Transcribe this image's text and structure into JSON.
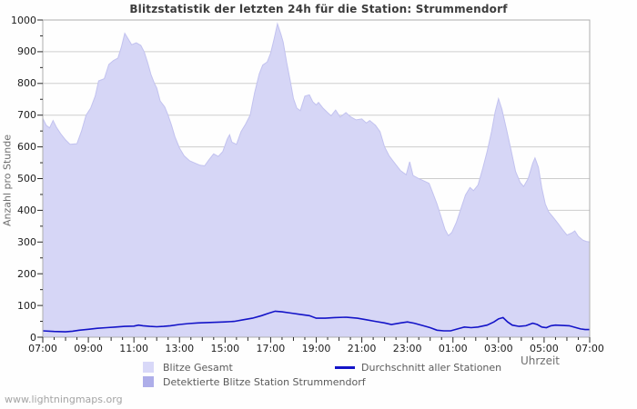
{
  "title": "Blitzstatistik der letzten 24h für die Station: Strummendorf",
  "watermark": "www.lightningmaps.org",
  "axes": {
    "y_label": "Anzahl pro Stunde",
    "x_label": "Uhrzeit",
    "y_tick_values": [
      0,
      100,
      200,
      300,
      400,
      500,
      600,
      700,
      800,
      900,
      1000
    ],
    "x_tick_labels": [
      "07:00",
      "09:00",
      "11:00",
      "13:00",
      "15:00",
      "17:00",
      "19:00",
      "21:00",
      "23:00",
      "01:00",
      "03:00",
      "05:00",
      "07:00"
    ]
  },
  "legend": [
    {
      "label": "Blitze Gesamt",
      "type": "area",
      "color": "#d8d8f8"
    },
    {
      "label": "Detektierte Blitze Station Strummendorf",
      "type": "area",
      "color": "#aeaee9"
    },
    {
      "label": "Durchschnitt aller Stationen",
      "type": "line",
      "color": "#1414c8"
    }
  ],
  "colors": {
    "plot_border": "#adadad",
    "gridline": "#cdcdcd",
    "tick": "#2a2a2a",
    "area_total_fill": "#d6d6f6",
    "area_total_edge": "#c2c2ef",
    "area_station_fill": "#aeaee9",
    "avg_line": "#1414c8",
    "background": "#fefefe"
  },
  "chart_data": {
    "type": "area",
    "title": "Blitzstatistik der letzten 24h für die Station: Strummendorf",
    "xlabel": "Uhrzeit",
    "ylabel": "Anzahl pro Stunde",
    "x_unit": "hours_after_07:00",
    "xlim_hours": [
      0,
      24
    ],
    "ylim": [
      0,
      1000
    ],
    "grid": "horizontal-major",
    "legend_position": "bottom",
    "series": [
      {
        "name": "Blitze Gesamt",
        "style": "area",
        "color": "#d6d6f6",
        "points": [
          [
            0,
            690
          ],
          [
            0.15,
            668
          ],
          [
            0.3,
            660
          ],
          [
            0.45,
            683
          ],
          [
            0.6,
            662
          ],
          [
            0.8,
            640
          ],
          [
            1.0,
            622
          ],
          [
            1.2,
            608
          ],
          [
            1.5,
            610
          ],
          [
            1.7,
            650
          ],
          [
            1.9,
            700
          ],
          [
            2.1,
            722
          ],
          [
            2.3,
            760
          ],
          [
            2.45,
            808
          ],
          [
            2.7,
            815
          ],
          [
            2.9,
            860
          ],
          [
            3.1,
            872
          ],
          [
            3.3,
            880
          ],
          [
            3.45,
            915
          ],
          [
            3.6,
            958
          ],
          [
            3.75,
            940
          ],
          [
            3.9,
            922
          ],
          [
            4.1,
            928
          ],
          [
            4.3,
            920
          ],
          [
            4.45,
            900
          ],
          [
            4.6,
            866
          ],
          [
            4.75,
            828
          ],
          [
            4.9,
            800
          ],
          [
            5.0,
            786
          ],
          [
            5.15,
            745
          ],
          [
            5.35,
            726
          ],
          [
            5.5,
            700
          ],
          [
            5.65,
            668
          ],
          [
            5.8,
            632
          ],
          [
            6.0,
            596
          ],
          [
            6.2,
            572
          ],
          [
            6.45,
            556
          ],
          [
            6.7,
            548
          ],
          [
            6.9,
            542
          ],
          [
            7.1,
            540
          ],
          [
            7.3,
            560
          ],
          [
            7.5,
            578
          ],
          [
            7.7,
            570
          ],
          [
            7.9,
            585
          ],
          [
            8.1,
            625
          ],
          [
            8.2,
            638
          ],
          [
            8.3,
            615
          ],
          [
            8.5,
            608
          ],
          [
            8.7,
            648
          ],
          [
            8.9,
            672
          ],
          [
            9.1,
            700
          ],
          [
            9.3,
            772
          ],
          [
            9.5,
            830
          ],
          [
            9.65,
            858
          ],
          [
            9.85,
            868
          ],
          [
            10.0,
            895
          ],
          [
            10.15,
            940
          ],
          [
            10.3,
            988
          ],
          [
            10.45,
            955
          ],
          [
            10.55,
            930
          ],
          [
            10.7,
            868
          ],
          [
            10.85,
            812
          ],
          [
            11.0,
            752
          ],
          [
            11.15,
            722
          ],
          [
            11.3,
            714
          ],
          [
            11.5,
            760
          ],
          [
            11.7,
            764
          ],
          [
            11.85,
            742
          ],
          [
            12.0,
            732
          ],
          [
            12.1,
            740
          ],
          [
            12.3,
            722
          ],
          [
            12.5,
            708
          ],
          [
            12.65,
            698
          ],
          [
            12.85,
            716
          ],
          [
            13.05,
            694
          ],
          [
            13.3,
            708
          ],
          [
            13.5,
            695
          ],
          [
            13.75,
            685
          ],
          [
            14.0,
            688
          ],
          [
            14.2,
            675
          ],
          [
            14.35,
            683
          ],
          [
            14.6,
            668
          ],
          [
            14.8,
            648
          ],
          [
            15.0,
            600
          ],
          [
            15.2,
            572
          ],
          [
            15.45,
            548
          ],
          [
            15.7,
            525
          ],
          [
            15.95,
            512
          ],
          [
            16.1,
            553
          ],
          [
            16.25,
            510
          ],
          [
            16.5,
            500
          ],
          [
            16.75,
            492
          ],
          [
            16.95,
            485
          ],
          [
            17.1,
            458
          ],
          [
            17.3,
            420
          ],
          [
            17.5,
            375
          ],
          [
            17.65,
            340
          ],
          [
            17.8,
            320
          ],
          [
            17.95,
            330
          ],
          [
            18.15,
            362
          ],
          [
            18.35,
            405
          ],
          [
            18.55,
            448
          ],
          [
            18.75,
            472
          ],
          [
            18.9,
            462
          ],
          [
            19.1,
            480
          ],
          [
            19.3,
            530
          ],
          [
            19.5,
            585
          ],
          [
            19.7,
            650
          ],
          [
            19.85,
            710
          ],
          [
            20.0,
            752
          ],
          [
            20.15,
            718
          ],
          [
            20.35,
            655
          ],
          [
            20.55,
            590
          ],
          [
            20.75,
            522
          ],
          [
            20.95,
            488
          ],
          [
            21.1,
            475
          ],
          [
            21.3,
            500
          ],
          [
            21.5,
            548
          ],
          [
            21.6,
            565
          ],
          [
            21.75,
            535
          ],
          [
            21.9,
            470
          ],
          [
            22.05,
            420
          ],
          [
            22.2,
            395
          ],
          [
            22.4,
            378
          ],
          [
            22.6,
            360
          ],
          [
            22.8,
            340
          ],
          [
            23.0,
            322
          ],
          [
            23.2,
            328
          ],
          [
            23.35,
            335
          ],
          [
            23.5,
            318
          ],
          [
            23.7,
            306
          ],
          [
            23.85,
            302
          ],
          [
            24,
            300
          ]
        ]
      },
      {
        "name": "Detektierte Blitze Station Strummendorf",
        "style": "area",
        "color": "#aeaee9",
        "points": [
          [
            0,
            0
          ],
          [
            24,
            0
          ]
        ]
      },
      {
        "name": "Durchschnitt aller Stationen",
        "style": "line",
        "color": "#1414c8",
        "points": [
          [
            0,
            20
          ],
          [
            0.5,
            18
          ],
          [
            1,
            17
          ],
          [
            1.3,
            19
          ],
          [
            1.6,
            22
          ],
          [
            2,
            25
          ],
          [
            2.4,
            28
          ],
          [
            2.8,
            30
          ],
          [
            3.2,
            32
          ],
          [
            3.6,
            34
          ],
          [
            4,
            35
          ],
          [
            4.2,
            38
          ],
          [
            4.4,
            36
          ],
          [
            4.7,
            34
          ],
          [
            5,
            33
          ],
          [
            5.3,
            34
          ],
          [
            5.6,
            36
          ],
          [
            6,
            40
          ],
          [
            6.4,
            43
          ],
          [
            6.8,
            45
          ],
          [
            7.2,
            46
          ],
          [
            7.6,
            47
          ],
          [
            8,
            48
          ],
          [
            8.4,
            50
          ],
          [
            8.8,
            55
          ],
          [
            9.2,
            60
          ],
          [
            9.6,
            68
          ],
          [
            9.9,
            75
          ],
          [
            10.2,
            82
          ],
          [
            10.5,
            80
          ],
          [
            10.9,
            76
          ],
          [
            11.3,
            72
          ],
          [
            11.7,
            68
          ],
          [
            12,
            60
          ],
          [
            12.4,
            60
          ],
          [
            12.8,
            62
          ],
          [
            13.3,
            63
          ],
          [
            13.8,
            60
          ],
          [
            14.2,
            55
          ],
          [
            14.6,
            50
          ],
          [
            15,
            45
          ],
          [
            15.3,
            40
          ],
          [
            15.7,
            45
          ],
          [
            16,
            48
          ],
          [
            16.3,
            44
          ],
          [
            16.7,
            36
          ],
          [
            17,
            30
          ],
          [
            17.3,
            22
          ],
          [
            17.6,
            20
          ],
          [
            17.9,
            20
          ],
          [
            18.2,
            26
          ],
          [
            18.5,
            32
          ],
          [
            18.8,
            30
          ],
          [
            19.1,
            32
          ],
          [
            19.5,
            38
          ],
          [
            19.8,
            48
          ],
          [
            20.0,
            58
          ],
          [
            20.2,
            62
          ],
          [
            20.4,
            48
          ],
          [
            20.6,
            38
          ],
          [
            20.9,
            34
          ],
          [
            21.2,
            36
          ],
          [
            21.5,
            44
          ],
          [
            21.7,
            40
          ],
          [
            21.9,
            32
          ],
          [
            22.1,
            30
          ],
          [
            22.3,
            36
          ],
          [
            22.5,
            38
          ],
          [
            22.8,
            37
          ],
          [
            23.1,
            36
          ],
          [
            23.4,
            30
          ],
          [
            23.6,
            26
          ],
          [
            23.8,
            24
          ],
          [
            24,
            24
          ]
        ]
      }
    ]
  }
}
